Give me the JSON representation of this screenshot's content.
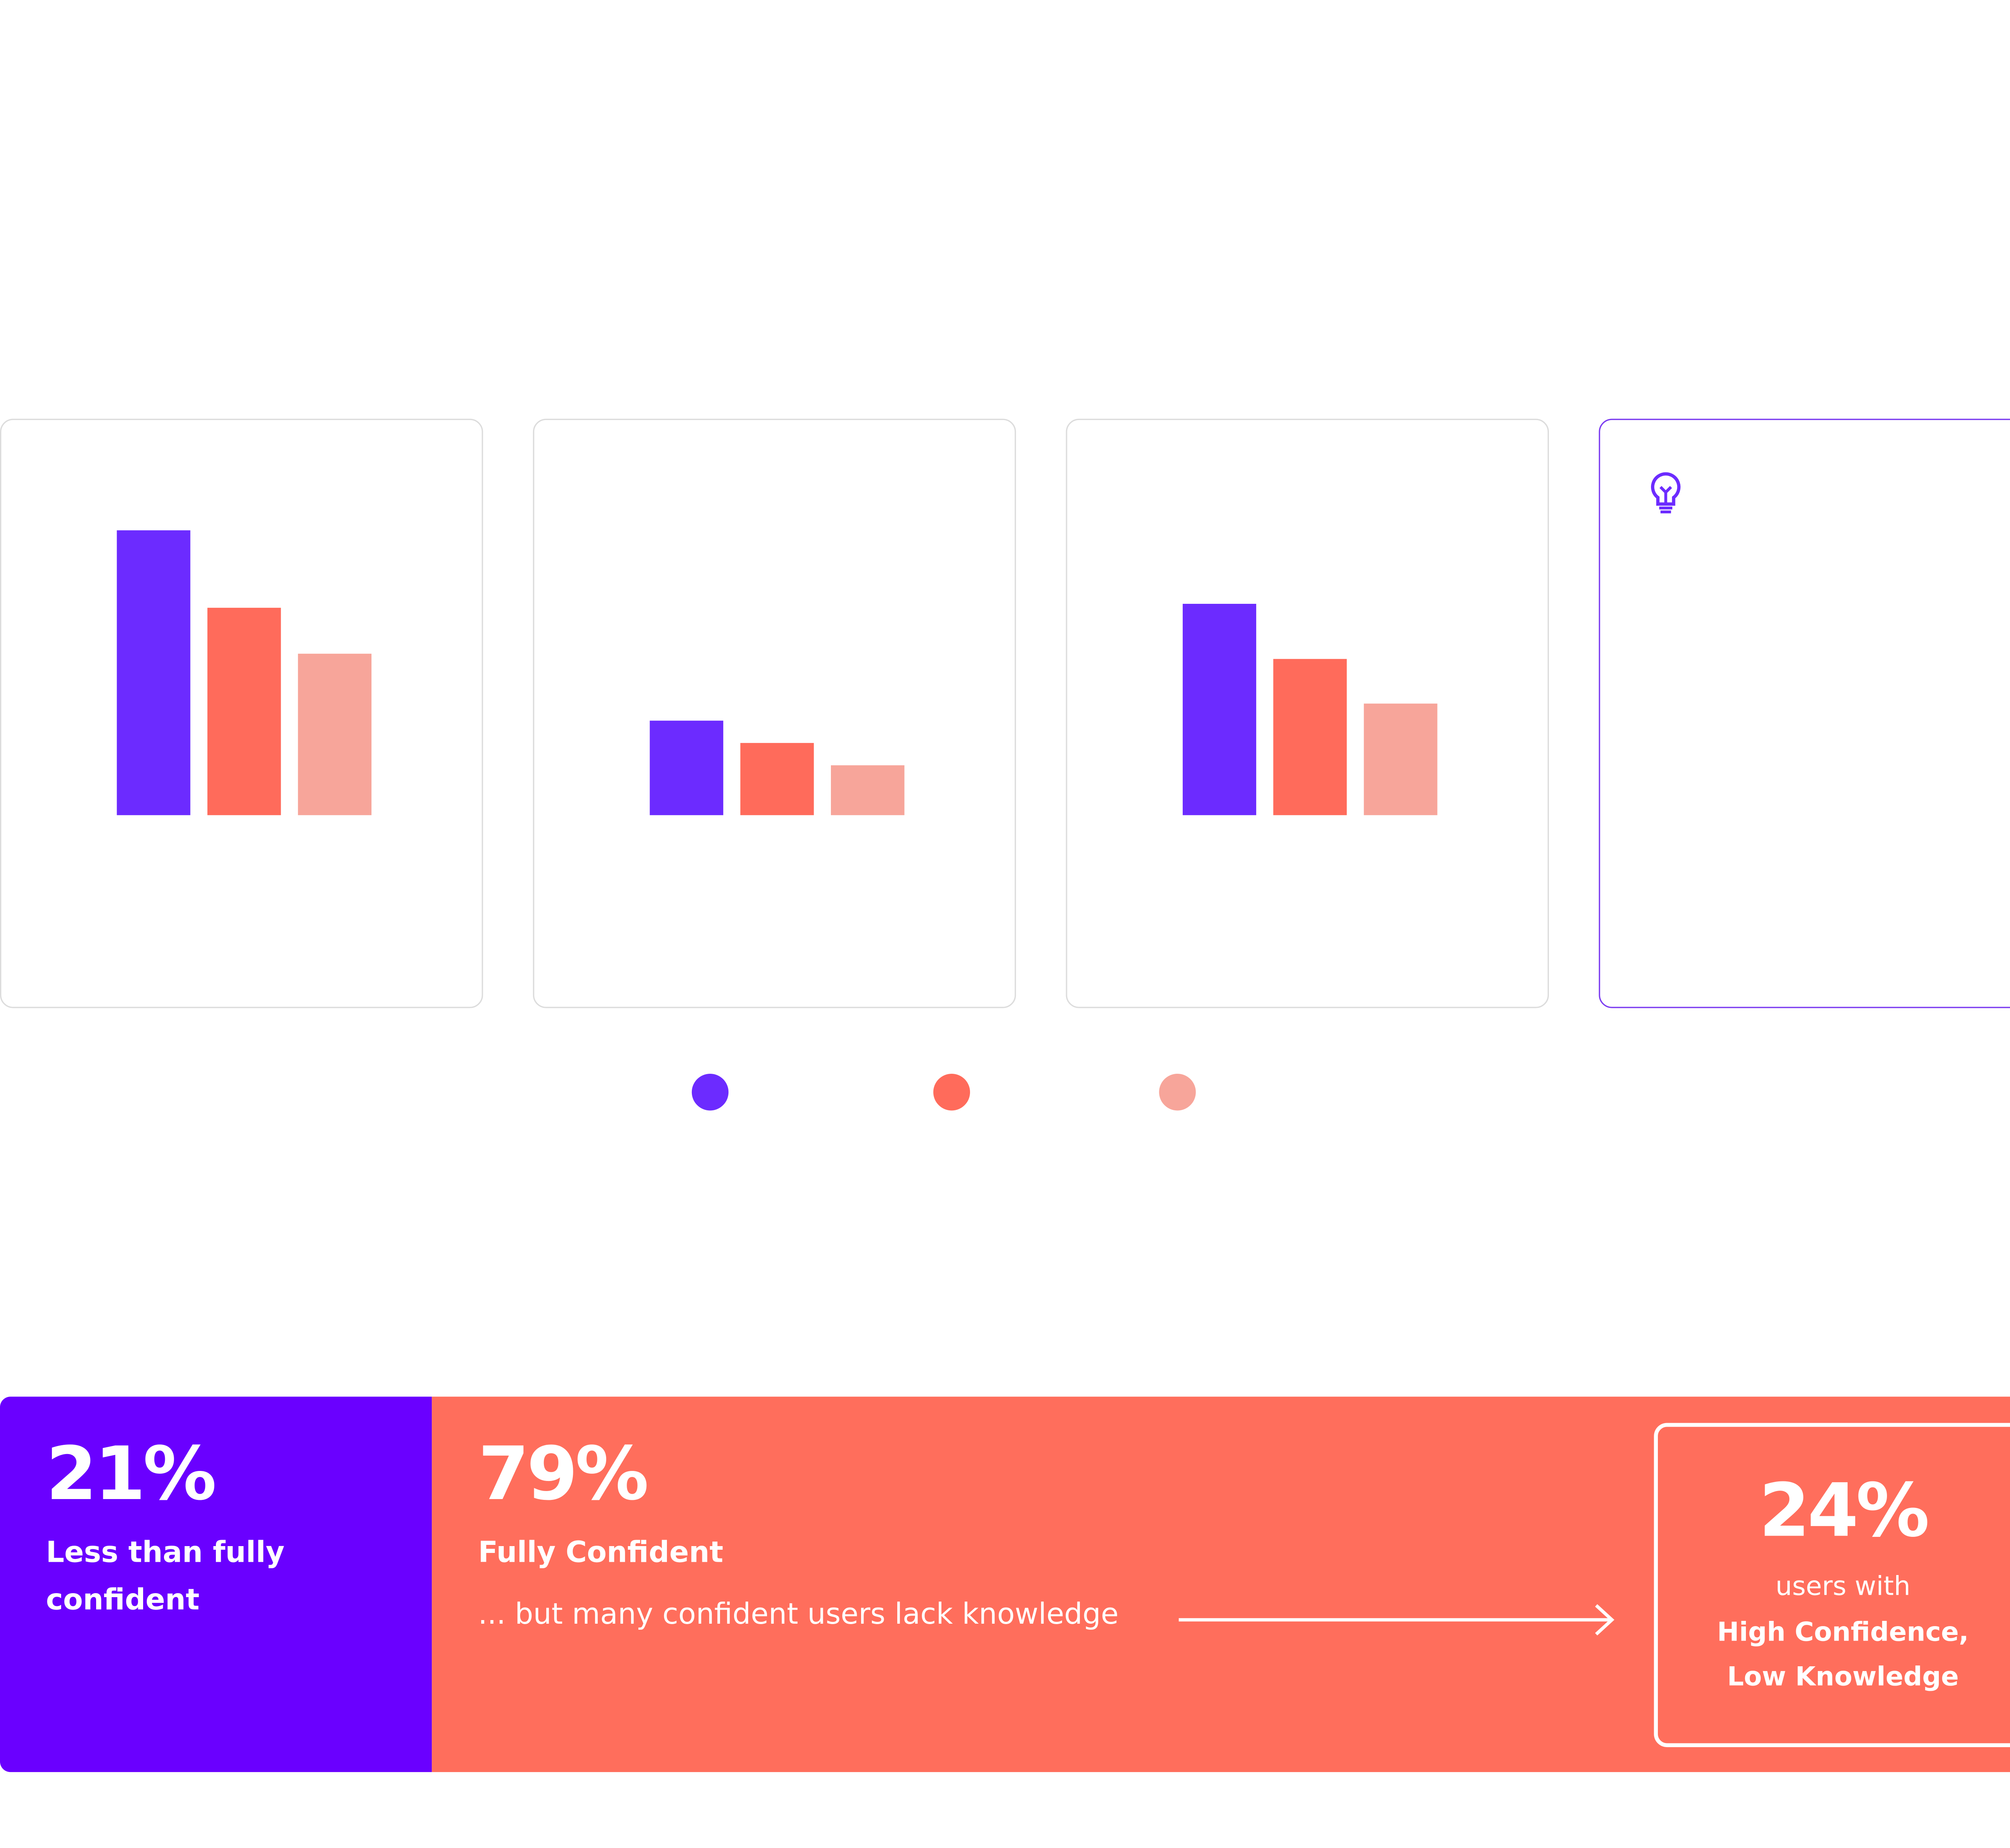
{
  "chart_data": [
    {
      "type": "bar",
      "series": [
        {
          "color": "#6c2bff",
          "values": [
            217
          ]
        },
        {
          "color": "#ff6b5b",
          "values": [
            158
          ]
        },
        {
          "color": "#f7a59a",
          "values": [
            123
          ]
        }
      ]
    },
    {
      "type": "bar",
      "series": [
        {
          "color": "#6c2bff",
          "values": [
            72
          ]
        },
        {
          "color": "#ff6b5b",
          "values": [
            55
          ]
        },
        {
          "color": "#f7a59a",
          "values": [
            38
          ]
        }
      ]
    },
    {
      "type": "bar",
      "series": [
        {
          "color": "#6c2bff",
          "values": [
            161
          ]
        },
        {
          "color": "#ff6b5b",
          "values": [
            119
          ]
        },
        {
          "color": "#f7a59a",
          "values": [
            85
          ]
        }
      ]
    },
    {
      "type": "stacked_bar",
      "series": [
        {
          "name": "Less than fully confident",
          "color": "#6a00ff",
          "values": [
            21
          ],
          "value_labels": [
            "21%"
          ]
        },
        {
          "name": "Fully Confident",
          "color": "#ff6e5c",
          "values": [
            79
          ],
          "value_labels": [
            "79%"
          ]
        }
      ],
      "annotation": "... but many confident users lack knowledge",
      "callout": {
        "value": 24,
        "value_label": "24%",
        "text": "users with",
        "highlight": [
          "High Confidence,",
          "Low Knowledge"
        ]
      }
    }
  ]
}
